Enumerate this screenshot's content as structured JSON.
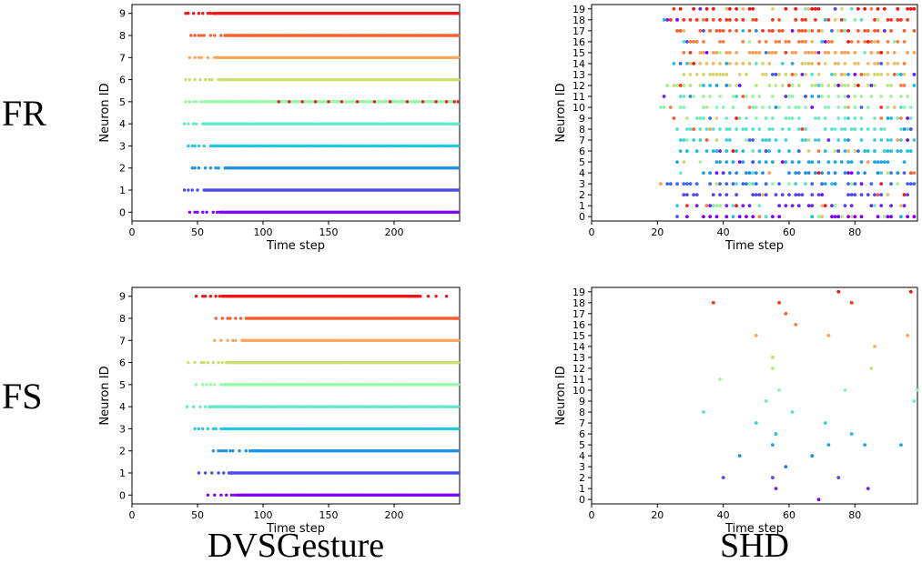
{
  "figure": {
    "row_labels": [
      "FR",
      "FS"
    ],
    "column_labels": [
      "DVSGesture",
      "SHD"
    ]
  },
  "chart_data": [
    {
      "type": "scatter",
      "panel": "FR-DVSGesture",
      "row": "FR",
      "column": "DVSGesture",
      "xlabel": "Time step",
      "ylabel": "Neuron ID",
      "xlim": [
        0,
        250
      ],
      "ylim": [
        -0.4,
        9.4
      ],
      "xticks": [
        0,
        50,
        100,
        150,
        200
      ],
      "yticks": [
        0,
        1,
        2,
        3,
        4,
        5,
        6,
        7,
        8,
        9
      ],
      "pattern": "raster",
      "neurons": [
        {
          "id": 0,
          "sparse_from": 44,
          "dense_from": 68,
          "to": 249
        },
        {
          "id": 1,
          "sparse_from": 40,
          "dense_from": 55,
          "to": 249
        },
        {
          "id": 2,
          "sparse_from": 46,
          "dense_from": 72,
          "to": 249
        },
        {
          "id": 3,
          "sparse_from": 43,
          "dense_from": 60,
          "to": 249
        },
        {
          "id": 4,
          "sparse_from": 40,
          "dense_from": 55,
          "to": 249
        },
        {
          "id": 5,
          "sparse_from": 41,
          "dense_from": 55,
          "to": 249,
          "overlay_color": "#e51c23",
          "overlay": [
            112,
            120,
            130,
            140,
            150,
            160,
            172,
            185,
            197,
            210,
            222,
            232,
            240,
            246,
            249
          ]
        },
        {
          "id": 6,
          "sparse_from": 41,
          "dense_from": 68,
          "to": 249
        },
        {
          "id": 7,
          "sparse_from": 44,
          "dense_from": 65,
          "to": 249
        },
        {
          "id": 8,
          "sparse_from": 45,
          "dense_from": 72,
          "to": 249
        },
        {
          "id": 9,
          "sparse_from": 41,
          "dense_from": 62,
          "to": 249
        }
      ]
    },
    {
      "type": "scatter",
      "panel": "FR-SHD",
      "row": "FR",
      "column": "SHD",
      "xlabel": "Time step",
      "ylabel": "Neuron ID",
      "xlim": [
        0,
        99
      ],
      "ylim": [
        -0.4,
        19.4
      ],
      "xticks": [
        0,
        20,
        40,
        60,
        80
      ],
      "yticks": [
        0,
        1,
        2,
        3,
        4,
        5,
        6,
        7,
        8,
        9,
        10,
        11,
        12,
        13,
        14,
        15,
        16,
        17,
        18,
        19
      ],
      "pattern": "raster",
      "neurons": [
        {
          "id": 0,
          "from": 26,
          "to": 98
        },
        {
          "id": 1,
          "from": 26,
          "to": 98
        },
        {
          "id": 2,
          "from": 28,
          "to": 98
        },
        {
          "id": 3,
          "from": 21,
          "to": 98
        },
        {
          "id": 4,
          "from": 27,
          "to": 98
        },
        {
          "id": 5,
          "from": 26,
          "to": 98
        },
        {
          "id": 6,
          "from": 25,
          "to": 98
        },
        {
          "id": 7,
          "from": 27,
          "to": 98
        },
        {
          "id": 8,
          "from": 26,
          "to": 98
        },
        {
          "id": 9,
          "from": 25,
          "to": 98
        },
        {
          "id": 10,
          "from": 21,
          "to": 98
        },
        {
          "id": 11,
          "from": 22,
          "to": 98
        },
        {
          "id": 12,
          "from": 23,
          "to": 98
        },
        {
          "id": 13,
          "from": 28,
          "to": 98
        },
        {
          "id": 14,
          "from": 25,
          "to": 98
        },
        {
          "id": 15,
          "from": 26,
          "to": 98
        },
        {
          "id": 16,
          "from": 28,
          "to": 98
        },
        {
          "id": 17,
          "from": 26,
          "to": 98
        },
        {
          "id": 18,
          "from": 22,
          "to": 98
        },
        {
          "id": 19,
          "from": 25,
          "to": 98
        }
      ]
    },
    {
      "type": "scatter",
      "panel": "FS-DVSGesture",
      "row": "FS",
      "column": "DVSGesture",
      "xlabel": "Time step",
      "ylabel": "Neuron ID",
      "xlim": [
        0,
        250
      ],
      "ylim": [
        -0.4,
        9.4
      ],
      "xticks": [
        0,
        50,
        100,
        150,
        200
      ],
      "yticks": [
        0,
        1,
        2,
        3,
        4,
        5,
        6,
        7,
        8,
        9
      ],
      "pattern": "raster",
      "neurons": [
        {
          "id": 0,
          "sparse_from": 58,
          "dense_from": 80,
          "to": 249
        },
        {
          "id": 1,
          "sparse_from": 51,
          "dense_from": 75,
          "to": 249
        },
        {
          "id": 2,
          "sparse_from": 62,
          "dense_from": 90,
          "to": 249
        },
        {
          "id": 3,
          "sparse_from": 48,
          "dense_from": 68,
          "to": 249
        },
        {
          "id": 4,
          "sparse_from": 42,
          "dense_from": 60,
          "to": 249
        },
        {
          "id": 5,
          "sparse_from": 49,
          "dense_from": 70,
          "to": 249
        },
        {
          "id": 6,
          "sparse_from": 43,
          "dense_from": 72,
          "to": 249
        },
        {
          "id": 7,
          "sparse_from": 63,
          "dense_from": 85,
          "to": 249
        },
        {
          "id": 8,
          "sparse_from": 64,
          "dense_from": 88,
          "to": 249
        },
        {
          "id": 9,
          "sparse_from": 49,
          "dense_from": 70,
          "to": 220,
          "tail": [
            226,
            232,
            240
          ]
        }
      ]
    },
    {
      "type": "scatter",
      "panel": "FS-SHD",
      "row": "FS",
      "column": "SHD",
      "xlabel": "Time step",
      "ylabel": "Neuron ID",
      "xlim": [
        0,
        99
      ],
      "ylim": [
        -0.4,
        19.4
      ],
      "xticks": [
        0,
        20,
        40,
        60,
        80
      ],
      "yticks": [
        0,
        1,
        2,
        3,
        4,
        5,
        6,
        7,
        8,
        9,
        10,
        11,
        12,
        13,
        14,
        15,
        16,
        17,
        18,
        19
      ],
      "points": [
        [
          69,
          0
        ],
        [
          56,
          1
        ],
        [
          84,
          1
        ],
        [
          40,
          2
        ],
        [
          55,
          2
        ],
        [
          75,
          2
        ],
        [
          59,
          3
        ],
        [
          45,
          4
        ],
        [
          67,
          4
        ],
        [
          55,
          5
        ],
        [
          72,
          5
        ],
        [
          83,
          5
        ],
        [
          94,
          5
        ],
        [
          56,
          6
        ],
        [
          79,
          6
        ],
        [
          50,
          7
        ],
        [
          71,
          7
        ],
        [
          34,
          8
        ],
        [
          61,
          8
        ],
        [
          53,
          9
        ],
        [
          98,
          9
        ],
        [
          57,
          10
        ],
        [
          77,
          10
        ],
        [
          99,
          10
        ],
        [
          39,
          11
        ],
        [
          55,
          12
        ],
        [
          85,
          12
        ],
        [
          55,
          13
        ],
        [
          86,
          14
        ],
        [
          50,
          15
        ],
        [
          72,
          15
        ],
        [
          96,
          15
        ],
        [
          62,
          16
        ],
        [
          59,
          17
        ],
        [
          37,
          18
        ],
        [
          57,
          18
        ],
        [
          79,
          18
        ],
        [
          75,
          19
        ],
        [
          97,
          19
        ]
      ]
    }
  ]
}
